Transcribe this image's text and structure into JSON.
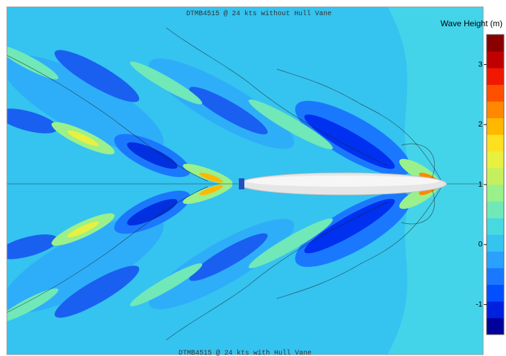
{
  "chart_data": {
    "type": "colorbar",
    "top_caption": "DTMB4515 @ 24 kts without Hull Vane",
    "bottom_caption": "DTMB4515 @ 24 kts with Hull Vane",
    "colorbar_label": "Wave Height (m)",
    "ylim": [
      -1.5,
      3.5
    ],
    "yticks": [
      3,
      2,
      1,
      0,
      -1
    ],
    "colors": [
      "#00009a",
      "#0020e0",
      "#0050ff",
      "#1a78ff",
      "#2aa0ff",
      "#35c3f0",
      "#48d8e0",
      "#70e8b8",
      "#9af08a",
      "#c4f060",
      "#e8f040",
      "#ffe020",
      "#ffb800",
      "#ff8800",
      "#ff5000",
      "#f01800",
      "#c00000",
      "#8a0000"
    ]
  }
}
